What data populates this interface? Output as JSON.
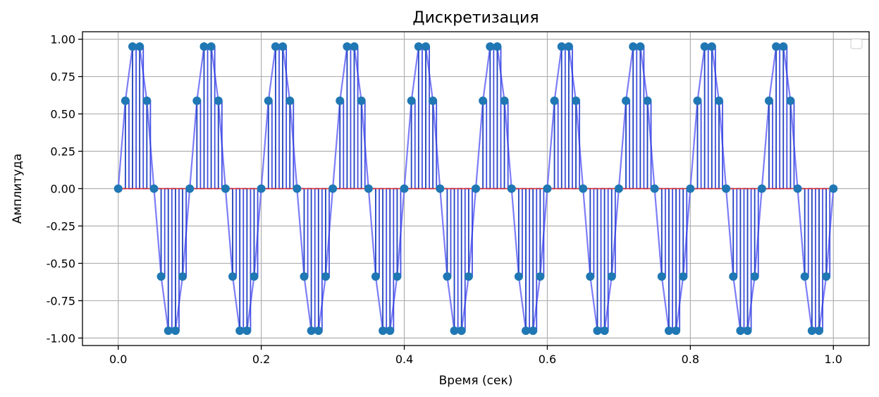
{
  "chart_data": {
    "type": "line",
    "title": "Дискретизация",
    "xlabel": "Время (сек)",
    "ylabel": "Амплитуда",
    "xlim": [
      -0.05,
      1.05
    ],
    "ylim": [
      -1.05,
      1.05
    ],
    "grid": true,
    "legend": {
      "placement": "top-right",
      "entries": []
    },
    "x_ticks": [
      "0.0",
      "0.2",
      "0.4",
      "0.6",
      "0.8",
      "1.0"
    ],
    "y_ticks": [
      "1.00",
      "0.75",
      "0.50",
      "0.25",
      "0.00",
      "-0.25",
      "-0.50",
      "-0.75",
      "-1.00"
    ],
    "colors": {
      "continuous": "#6f6ff7",
      "samples": "#1f77b4",
      "stems": "#2ca02c",
      "reconstruction": "#2233dd",
      "baseline": "#d62728"
    },
    "series": [
      {
        "style": "continuous-line",
        "x": [
          0.0,
          0.01,
          0.02,
          0.03,
          0.04,
          0.05,
          0.06,
          0.07,
          0.08,
          0.09,
          0.1,
          0.11,
          0.12,
          0.13,
          0.14,
          0.15,
          0.16,
          0.17,
          0.18,
          0.19,
          0.2,
          0.21,
          0.22,
          0.23,
          0.24,
          0.25,
          0.26,
          0.27,
          0.28,
          0.29,
          0.3,
          0.31,
          0.32,
          0.33,
          0.34,
          0.35,
          0.36,
          0.37,
          0.38,
          0.39,
          0.4,
          0.41,
          0.42,
          0.43,
          0.44,
          0.45,
          0.46,
          0.47,
          0.48,
          0.49,
          0.5,
          0.51,
          0.52,
          0.53,
          0.54,
          0.55,
          0.56,
          0.57,
          0.58,
          0.59,
          0.6,
          0.61,
          0.62,
          0.63,
          0.64,
          0.65,
          0.66,
          0.67,
          0.68,
          0.69,
          0.7,
          0.71,
          0.72,
          0.73,
          0.74,
          0.75,
          0.76,
          0.77,
          0.78,
          0.79,
          0.8,
          0.81,
          0.82,
          0.83,
          0.84,
          0.85,
          0.86,
          0.87,
          0.88,
          0.89,
          0.9,
          0.91,
          0.92,
          0.93,
          0.94,
          0.95,
          0.96,
          0.97,
          0.98,
          0.99,
          1.0
        ],
        "y": [
          0,
          0.588,
          0.951,
          0.951,
          0.588,
          0,
          -0.588,
          -0.951,
          -0.951,
          -0.588,
          0,
          0.588,
          0.951,
          0.951,
          0.588,
          0,
          -0.588,
          -0.951,
          -0.951,
          -0.588,
          0,
          0.588,
          0.951,
          0.951,
          0.588,
          0,
          -0.588,
          -0.951,
          -0.951,
          -0.588,
          0,
          0.588,
          0.951,
          0.951,
          0.588,
          0,
          -0.588,
          -0.951,
          -0.951,
          -0.588,
          0,
          0.588,
          0.951,
          0.951,
          0.588,
          0,
          -0.588,
          -0.951,
          -0.951,
          -0.588,
          0,
          0.588,
          0.951,
          0.951,
          0.588,
          0,
          -0.588,
          -0.951,
          -0.951,
          -0.588,
          0,
          0.588,
          0.951,
          0.951,
          0.588,
          0,
          -0.588,
          -0.951,
          -0.951,
          -0.588,
          0,
          0.588,
          0.951,
          0.951,
          0.588,
          0,
          -0.588,
          -0.951,
          -0.951,
          -0.588,
          0,
          0.588,
          0.951,
          0.951,
          0.588,
          0,
          -0.588,
          -0.951,
          -0.951,
          -0.588,
          0,
          0.588,
          0.951,
          0.951,
          0.588,
          0,
          -0.588,
          -0.951,
          -0.951,
          -0.588,
          0
        ]
      },
      {
        "style": "samples-stem",
        "x": [
          0.0,
          0.005,
          0.01,
          0.015,
          0.02,
          0.025,
          0.03,
          0.035,
          0.04,
          0.045,
          0.05,
          0.055,
          0.06,
          0.065,
          0.07,
          0.075,
          0.08,
          0.085,
          0.09,
          0.095,
          0.1,
          0.105,
          0.11,
          0.115,
          0.12,
          0.125,
          0.13,
          0.135,
          0.14,
          0.145,
          0.15,
          0.155,
          0.16,
          0.165,
          0.17,
          0.175,
          0.18,
          0.185,
          0.19,
          0.195,
          0.2,
          0.205,
          0.21,
          0.215,
          0.22,
          0.225,
          0.23,
          0.235,
          0.24,
          0.245,
          0.25,
          0.255,
          0.26,
          0.265,
          0.27,
          0.275,
          0.28,
          0.285,
          0.29,
          0.295,
          0.3,
          0.305,
          0.31,
          0.315,
          0.32,
          0.325,
          0.33,
          0.335,
          0.34,
          0.345,
          0.35,
          0.355,
          0.36,
          0.365,
          0.37,
          0.375,
          0.38,
          0.385,
          0.39,
          0.395,
          0.4,
          0.405,
          0.41,
          0.415,
          0.42,
          0.425,
          0.43,
          0.435,
          0.44,
          0.445,
          0.45,
          0.455,
          0.46,
          0.465,
          0.47,
          0.475,
          0.48,
          0.485,
          0.49,
          0.495,
          0.5,
          0.505,
          0.51,
          0.515,
          0.52,
          0.525,
          0.53,
          0.535,
          0.54,
          0.545,
          0.55,
          0.555,
          0.56,
          0.565,
          0.57,
          0.575,
          0.58,
          0.585,
          0.59,
          0.595,
          0.6,
          0.605,
          0.61,
          0.615,
          0.62,
          0.625,
          0.63,
          0.635,
          0.64,
          0.645,
          0.65,
          0.655,
          0.66,
          0.665,
          0.67,
          0.675,
          0.68,
          0.685,
          0.69,
          0.695,
          0.7,
          0.705,
          0.71,
          0.715,
          0.72,
          0.725,
          0.73,
          0.735,
          0.74,
          0.745,
          0.75,
          0.755,
          0.76,
          0.765,
          0.77,
          0.775,
          0.78,
          0.785,
          0.79,
          0.795,
          0.8,
          0.805,
          0.81,
          0.815,
          0.82,
          0.825,
          0.83,
          0.835,
          0.84,
          0.845,
          0.85,
          0.855,
          0.86,
          0.865,
          0.87,
          0.875,
          0.88,
          0.885,
          0.89,
          0.895,
          0.9,
          0.905,
          0.91,
          0.915,
          0.92,
          0.925,
          0.93,
          0.935,
          0.94,
          0.945,
          0.95,
          0.955,
          0.96,
          0.965,
          0.97,
          0.975,
          0.98,
          0.985,
          0.99,
          0.995,
          1.0
        ],
        "y": [
          0,
          0,
          0.588,
          0,
          0.951,
          0,
          0.951,
          0,
          0.588,
          0,
          0,
          0,
          -0.588,
          0,
          -0.951,
          0,
          -0.951,
          0,
          -0.588,
          0,
          0,
          0,
          0.588,
          0,
          0.951,
          0,
          0.951,
          0,
          0.588,
          0,
          0,
          0,
          -0.588,
          0,
          -0.951,
          0,
          -0.951,
          0,
          -0.588,
          0,
          0,
          0,
          0.588,
          0,
          0.951,
          0,
          0.951,
          0,
          0.588,
          0,
          0,
          0,
          -0.588,
          0,
          -0.951,
          0,
          -0.951,
          0,
          -0.588,
          0,
          0,
          0,
          0.588,
          0,
          0.951,
          0,
          0.951,
          0,
          0.588,
          0,
          0,
          0,
          -0.588,
          0,
          -0.951,
          0,
          -0.951,
          0,
          -0.588,
          0,
          0,
          0,
          0.588,
          0,
          0.951,
          0,
          0.951,
          0,
          0.588,
          0,
          0,
          0,
          -0.588,
          0,
          -0.951,
          0,
          -0.951,
          0,
          -0.588,
          0,
          0,
          0,
          0.588,
          0,
          0.951,
          0,
          0.951,
          0,
          0.588,
          0,
          0,
          0,
          -0.588,
          0,
          -0.951,
          0,
          -0.951,
          0,
          -0.588,
          0,
          0,
          0,
          0.588,
          0,
          0.951,
          0,
          0.951,
          0,
          0.588,
          0,
          0,
          0,
          -0.588,
          0,
          -0.951,
          0,
          -0.951,
          0,
          -0.588,
          0,
          0,
          0,
          0.588,
          0,
          0.951,
          0,
          0.951,
          0,
          0.588,
          0,
          0,
          0,
          -0.588,
          0,
          -0.951,
          0,
          -0.951,
          0,
          -0.588,
          0,
          0,
          0,
          0.588,
          0,
          0.951,
          0,
          0.951,
          0,
          0.588,
          0,
          0,
          0,
          -0.588,
          0,
          -0.951,
          0,
          -0.951,
          0,
          -0.588,
          0,
          0,
          0,
          0.588,
          0,
          0.951,
          0,
          0.951,
          0,
          0.588,
          0,
          0,
          0,
          -0.588,
          0,
          -0.951,
          0,
          -0.951,
          0,
          -0.588,
          0,
          0
        ]
      }
    ]
  }
}
